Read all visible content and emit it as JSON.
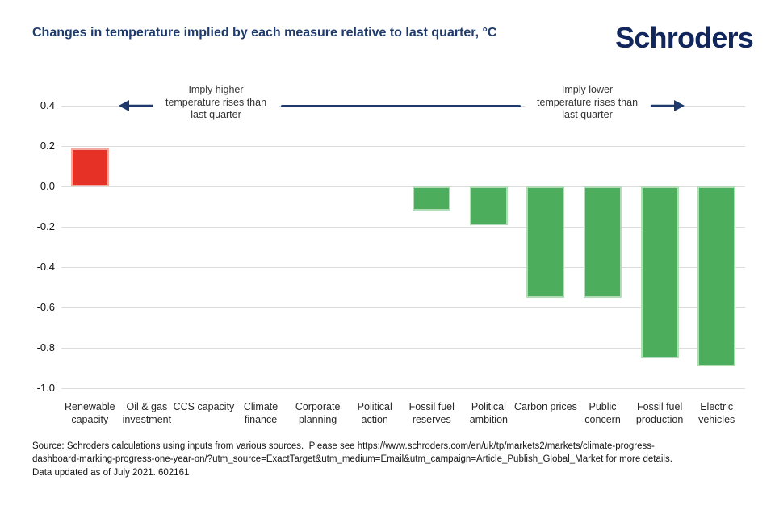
{
  "header": {
    "title": "Changes in temperature implied by each measure relative to last quarter, °C",
    "logo_text": "Schroders"
  },
  "annotations": {
    "left": {
      "line1": "Imply higher",
      "line2": "temperature rises than",
      "line3": "last quarter"
    },
    "right": {
      "line1": "Imply lower",
      "line2": "temperature rises than",
      "line3": "last quarter"
    }
  },
  "chart_data": {
    "type": "bar",
    "title": "Changes in temperature implied by each measure relative to last quarter, °C",
    "categories": [
      "Renewable capacity",
      "Oil & gas investment",
      "CCS capacity",
      "Climate finance",
      "Corporate planning",
      "Political action",
      "Fossil fuel reserves",
      "Political ambition",
      "Carbon prices",
      "Public concern",
      "Fossil fuel production",
      "Electric vehicles"
    ],
    "values": [
      0.19,
      0,
      0,
      0,
      0,
      0,
      -0.12,
      -0.19,
      -0.55,
      -0.55,
      -0.85,
      -0.89
    ],
    "yticks": [
      0.4,
      0.2,
      0.0,
      -0.2,
      -0.4,
      -0.6,
      -0.8,
      -1.0
    ],
    "ylim": [
      -1.0,
      0.45
    ],
    "xlabel": "",
    "ylabel": "",
    "grid": true,
    "legend": false,
    "bar_colors": {
      "positive": "#e63226",
      "negative": "#4cae5c",
      "positive_edge": "#f2a9a2",
      "negative_edge": "#b2dcb6"
    }
  },
  "footer": {
    "source_lines": [
      "Source: Schroders calculations using inputs from various sources.  Please see https://www.schroders.com/en/uk/tp/markets2/markets/climate-progress-",
      "dashboard-marking-progress-one-year-on/?utm_source=ExactTarget&utm_medium=Email&utm_campaign=Article_Publish_Global_Market for more details.",
      "Data updated as of July 2021. 602161"
    ]
  },
  "colors": {
    "title_navy": "#1f3b6e",
    "logo_navy": "#10265c",
    "annotation_navy": "#1e3a6d",
    "grid": "#dcdcdc",
    "axis_text": "#111111"
  }
}
